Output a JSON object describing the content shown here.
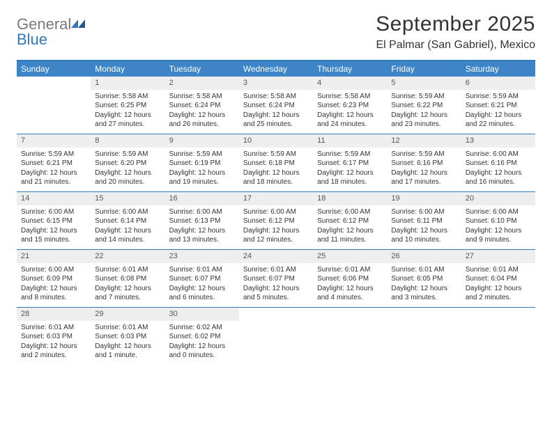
{
  "logo": {
    "text1": "General",
    "text2": "Blue"
  },
  "title": "September 2025",
  "location": "El Palmar (San Gabriel), Mexico",
  "colors": {
    "header_bar": "#3d85c6",
    "rule": "#2f79b9",
    "daynum_bg": "#eeeeee",
    "text": "#333333"
  },
  "dow": [
    "Sunday",
    "Monday",
    "Tuesday",
    "Wednesday",
    "Thursday",
    "Friday",
    "Saturday"
  ],
  "weeks": [
    [
      {
        "n": "",
        "empty": true
      },
      {
        "n": "1",
        "sr": "5:58 AM",
        "ss": "6:25 PM",
        "dl": "12 hours and 27 minutes."
      },
      {
        "n": "2",
        "sr": "5:58 AM",
        "ss": "6:24 PM",
        "dl": "12 hours and 26 minutes."
      },
      {
        "n": "3",
        "sr": "5:58 AM",
        "ss": "6:24 PM",
        "dl": "12 hours and 25 minutes."
      },
      {
        "n": "4",
        "sr": "5:58 AM",
        "ss": "6:23 PM",
        "dl": "12 hours and 24 minutes."
      },
      {
        "n": "5",
        "sr": "5:59 AM",
        "ss": "6:22 PM",
        "dl": "12 hours and 23 minutes."
      },
      {
        "n": "6",
        "sr": "5:59 AM",
        "ss": "6:21 PM",
        "dl": "12 hours and 22 minutes."
      }
    ],
    [
      {
        "n": "7",
        "sr": "5:59 AM",
        "ss": "6:21 PM",
        "dl": "12 hours and 21 minutes."
      },
      {
        "n": "8",
        "sr": "5:59 AM",
        "ss": "6:20 PM",
        "dl": "12 hours and 20 minutes."
      },
      {
        "n": "9",
        "sr": "5:59 AM",
        "ss": "6:19 PM",
        "dl": "12 hours and 19 minutes."
      },
      {
        "n": "10",
        "sr": "5:59 AM",
        "ss": "6:18 PM",
        "dl": "12 hours and 18 minutes."
      },
      {
        "n": "11",
        "sr": "5:59 AM",
        "ss": "6:17 PM",
        "dl": "12 hours and 18 minutes."
      },
      {
        "n": "12",
        "sr": "5:59 AM",
        "ss": "6:16 PM",
        "dl": "12 hours and 17 minutes."
      },
      {
        "n": "13",
        "sr": "6:00 AM",
        "ss": "6:16 PM",
        "dl": "12 hours and 16 minutes."
      }
    ],
    [
      {
        "n": "14",
        "sr": "6:00 AM",
        "ss": "6:15 PM",
        "dl": "12 hours and 15 minutes."
      },
      {
        "n": "15",
        "sr": "6:00 AM",
        "ss": "6:14 PM",
        "dl": "12 hours and 14 minutes."
      },
      {
        "n": "16",
        "sr": "6:00 AM",
        "ss": "6:13 PM",
        "dl": "12 hours and 13 minutes."
      },
      {
        "n": "17",
        "sr": "6:00 AM",
        "ss": "6:12 PM",
        "dl": "12 hours and 12 minutes."
      },
      {
        "n": "18",
        "sr": "6:00 AM",
        "ss": "6:12 PM",
        "dl": "12 hours and 11 minutes."
      },
      {
        "n": "19",
        "sr": "6:00 AM",
        "ss": "6:11 PM",
        "dl": "12 hours and 10 minutes."
      },
      {
        "n": "20",
        "sr": "6:00 AM",
        "ss": "6:10 PM",
        "dl": "12 hours and 9 minutes."
      }
    ],
    [
      {
        "n": "21",
        "sr": "6:00 AM",
        "ss": "6:09 PM",
        "dl": "12 hours and 8 minutes."
      },
      {
        "n": "22",
        "sr": "6:01 AM",
        "ss": "6:08 PM",
        "dl": "12 hours and 7 minutes."
      },
      {
        "n": "23",
        "sr": "6:01 AM",
        "ss": "6:07 PM",
        "dl": "12 hours and 6 minutes."
      },
      {
        "n": "24",
        "sr": "6:01 AM",
        "ss": "6:07 PM",
        "dl": "12 hours and 5 minutes."
      },
      {
        "n": "25",
        "sr": "6:01 AM",
        "ss": "6:06 PM",
        "dl": "12 hours and 4 minutes."
      },
      {
        "n": "26",
        "sr": "6:01 AM",
        "ss": "6:05 PM",
        "dl": "12 hours and 3 minutes."
      },
      {
        "n": "27",
        "sr": "6:01 AM",
        "ss": "6:04 PM",
        "dl": "12 hours and 2 minutes."
      }
    ],
    [
      {
        "n": "28",
        "sr": "6:01 AM",
        "ss": "6:03 PM",
        "dl": "12 hours and 2 minutes."
      },
      {
        "n": "29",
        "sr": "6:01 AM",
        "ss": "6:03 PM",
        "dl": "12 hours and 1 minute."
      },
      {
        "n": "30",
        "sr": "6:02 AM",
        "ss": "6:02 PM",
        "dl": "12 hours and 0 minutes."
      },
      {
        "n": "",
        "empty": true
      },
      {
        "n": "",
        "empty": true
      },
      {
        "n": "",
        "empty": true
      },
      {
        "n": "",
        "empty": true
      }
    ]
  ],
  "labels": {
    "sunrise": "Sunrise:",
    "sunset": "Sunset:",
    "daylight": "Daylight:"
  }
}
